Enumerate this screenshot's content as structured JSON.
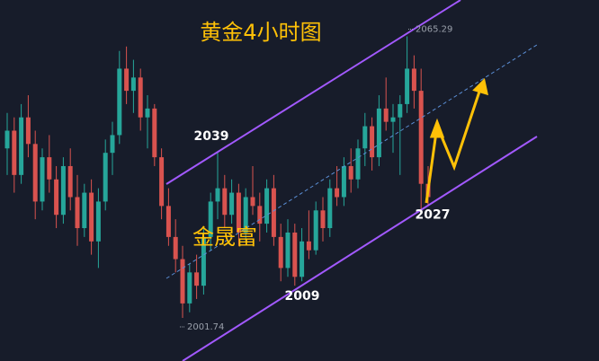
{
  "chart_data": {
    "type": "candlestick",
    "title": "黄金4小时图",
    "watermark": "金晟富",
    "up_color": "#26a69a",
    "down_color": "#d9534f",
    "ylim": [
      1992,
      2073.5
    ],
    "ohlc": [
      [
        2040,
        2048,
        2034,
        2044
      ],
      [
        2044,
        2047,
        2030,
        2034
      ],
      [
        2034,
        2050,
        2032,
        2047
      ],
      [
        2047,
        2052,
        2038,
        2041
      ],
      [
        2041,
        2044,
        2024,
        2028
      ],
      [
        2028,
        2040,
        2026,
        2038
      ],
      [
        2038,
        2043,
        2030,
        2033
      ],
      [
        2033,
        2036,
        2022,
        2025
      ],
      [
        2025,
        2038,
        2023,
        2036
      ],
      [
        2036,
        2040,
        2026,
        2029
      ],
      [
        2029,
        2034,
        2018,
        2022
      ],
      [
        2022,
        2032,
        2020,
        2030
      ],
      [
        2030,
        2033,
        2016,
        2019
      ],
      [
        2019,
        2031,
        2013,
        2028
      ],
      [
        2028,
        2042,
        2026,
        2039
      ],
      [
        2039,
        2046,
        2034,
        2043
      ],
      [
        2043,
        2062,
        2041,
        2058
      ],
      [
        2058,
        2063,
        2050,
        2053
      ],
      [
        2053,
        2060,
        2048,
        2056
      ],
      [
        2056,
        2058,
        2044,
        2047
      ],
      [
        2047,
        2052,
        2040,
        2049
      ],
      [
        2049,
        2050,
        2036,
        2038
      ],
      [
        2038,
        2040,
        2024,
        2027
      ],
      [
        2027,
        2031,
        2018,
        2020
      ],
      [
        2020,
        2024,
        2012,
        2015
      ],
      [
        2015,
        2018,
        2001.74,
        2005
      ],
      [
        2005,
        2014,
        2003,
        2012
      ],
      [
        2012,
        2016,
        2006,
        2009
      ],
      [
        2009,
        2022,
        2007,
        2020
      ],
      [
        2020,
        2030,
        2017,
        2028
      ],
      [
        2028,
        2039,
        2024,
        2031
      ],
      [
        2031,
        2034,
        2022,
        2025
      ],
      [
        2025,
        2033,
        2023,
        2030
      ],
      [
        2030,
        2032,
        2018,
        2021
      ],
      [
        2021,
        2031,
        2019,
        2029
      ],
      [
        2029,
        2036,
        2025,
        2027
      ],
      [
        2027,
        2030,
        2019,
        2023
      ],
      [
        2023,
        2033,
        2021,
        2031
      ],
      [
        2031,
        2034,
        2018,
        2020
      ],
      [
        2020,
        2023,
        2010,
        2013
      ],
      [
        2013,
        2024,
        2011,
        2021
      ],
      [
        2021,
        2023,
        2009,
        2011
      ],
      [
        2011,
        2022,
        2010,
        2019
      ],
      [
        2019,
        2026,
        2015,
        2017
      ],
      [
        2017,
        2028,
        2016,
        2026
      ],
      [
        2026,
        2029,
        2019,
        2022
      ],
      [
        2022,
        2033,
        2020,
        2031
      ],
      [
        2031,
        2036,
        2027,
        2029
      ],
      [
        2029,
        2038,
        2027,
        2036
      ],
      [
        2036,
        2040,
        2030,
        2033
      ],
      [
        2033,
        2042,
        2031,
        2040
      ],
      [
        2040,
        2048,
        2036,
        2045
      ],
      [
        2045,
        2047,
        2035,
        2038
      ],
      [
        2038,
        2052,
        2036,
        2049
      ],
      [
        2049,
        2056,
        2044,
        2046
      ],
      [
        2046,
        2050,
        2039,
        2047
      ],
      [
        2047,
        2052,
        2034,
        2050
      ],
      [
        2050,
        2065.29,
        2048,
        2058
      ],
      [
        2058,
        2061,
        2049,
        2053
      ],
      [
        2053,
        2058,
        2026,
        2032
      ],
      [
        2032,
        2036,
        2027,
        2029
      ]
    ],
    "price_tags": [
      2065.29,
      2001.74
    ],
    "levels": [
      2039,
      2009,
      2027
    ]
  }
}
